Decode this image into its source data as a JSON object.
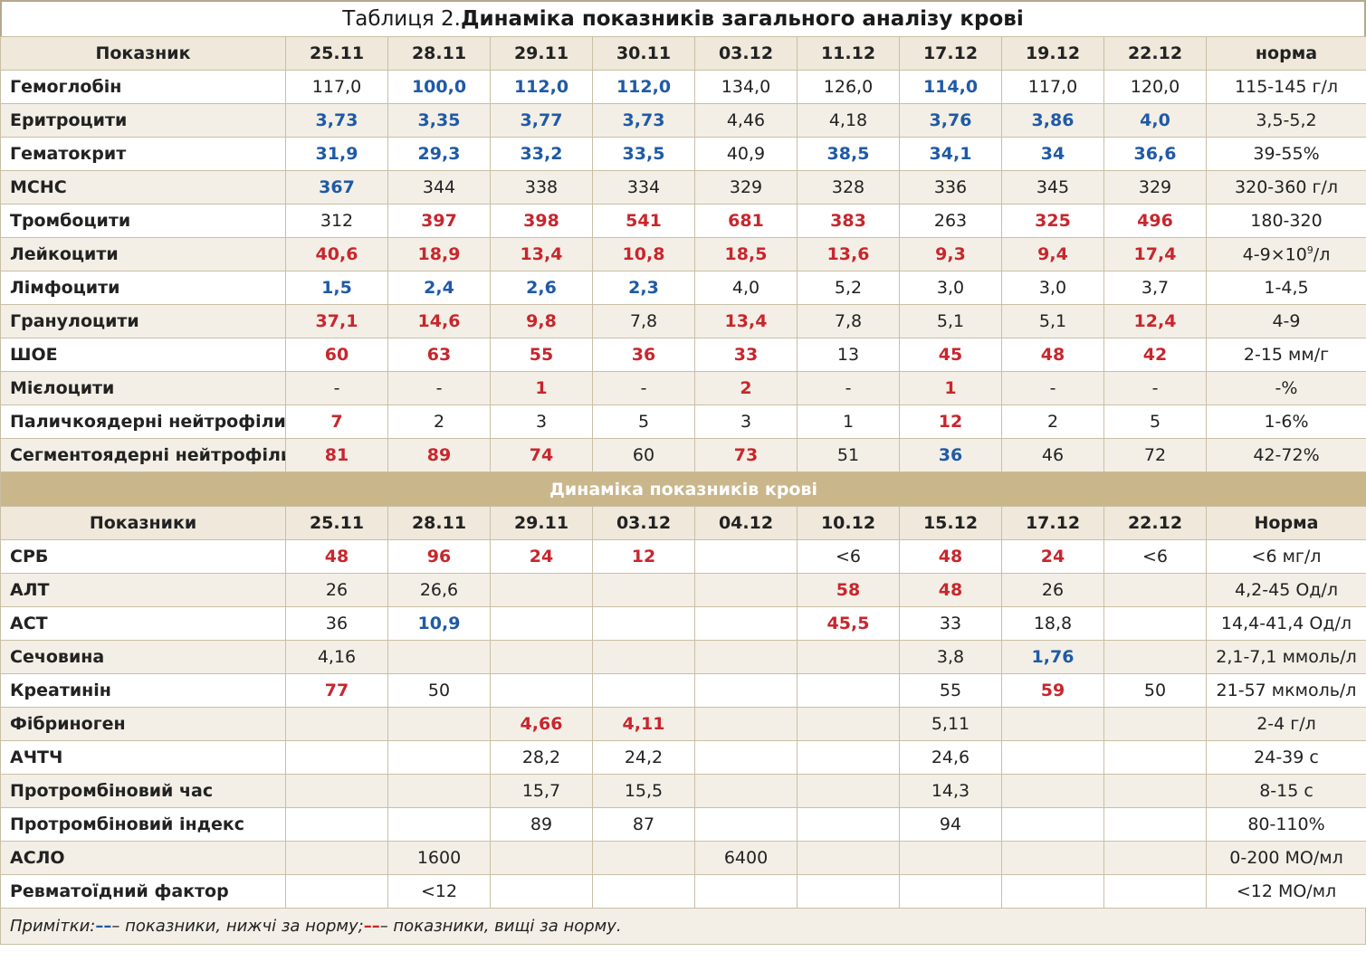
{
  "title": {
    "prefix": "Таблиця 2. ",
    "main": "Динаміка показників загального аналізу крові"
  },
  "colors": {
    "low": "#1f5aa6",
    "high": "#c8262d",
    "header_bg": "#efe8db",
    "section_bg": "#c9b68a"
  },
  "table1": {
    "headers": [
      "Показник",
      "25.11",
      "28.11",
      "29.11",
      "30.11",
      "03.12",
      "11.12",
      "17.12",
      "19.12",
      "22.12",
      "норма"
    ],
    "rows": [
      {
        "name": "Гемоглобін",
        "cells": [
          [
            "117,0",
            ""
          ],
          [
            "100,0",
            "low"
          ],
          [
            "112,0",
            "low"
          ],
          [
            "112,0",
            "low"
          ],
          [
            "134,0",
            ""
          ],
          [
            "126,0",
            ""
          ],
          [
            "114,0",
            "low"
          ],
          [
            "117,0",
            ""
          ],
          [
            "120,0",
            ""
          ]
        ],
        "norm": "115-145 г/л"
      },
      {
        "name": "Еритроцити",
        "cells": [
          [
            "3,73",
            "low"
          ],
          [
            "3,35",
            "low"
          ],
          [
            "3,77",
            "low"
          ],
          [
            "3,73",
            "low"
          ],
          [
            "4,46",
            ""
          ],
          [
            "4,18",
            ""
          ],
          [
            "3,76",
            "low"
          ],
          [
            "3,86",
            "low"
          ],
          [
            "4,0",
            "low"
          ]
        ],
        "norm": "3,5-5,2"
      },
      {
        "name": "Гематокрит",
        "cells": [
          [
            "31,9",
            "low"
          ],
          [
            "29,3",
            "low"
          ],
          [
            "33,2",
            "low"
          ],
          [
            "33,5",
            "low"
          ],
          [
            "40,9",
            ""
          ],
          [
            "38,5",
            "low"
          ],
          [
            "34,1",
            "low"
          ],
          [
            "34",
            "low"
          ],
          [
            "36,6",
            "low"
          ]
        ],
        "norm": "39-55%"
      },
      {
        "name": "MCHC",
        "cells": [
          [
            "367",
            "low"
          ],
          [
            "344",
            ""
          ],
          [
            "338",
            ""
          ],
          [
            "334",
            ""
          ],
          [
            "329",
            ""
          ],
          [
            "328",
            ""
          ],
          [
            "336",
            ""
          ],
          [
            "345",
            ""
          ],
          [
            "329",
            ""
          ]
        ],
        "norm": "320-360 г/л"
      },
      {
        "name": "Тромбоцити",
        "cells": [
          [
            "312",
            ""
          ],
          [
            "397",
            "high"
          ],
          [
            "398",
            "high"
          ],
          [
            "541",
            "high"
          ],
          [
            "681",
            "high"
          ],
          [
            "383",
            "high"
          ],
          [
            "263",
            ""
          ],
          [
            "325",
            "high"
          ],
          [
            "496",
            "high"
          ]
        ],
        "norm": "180-320"
      },
      {
        "name": "Лейкоцити",
        "cells": [
          [
            "40,6",
            "high"
          ],
          [
            "18,9",
            "high"
          ],
          [
            "13,4",
            "high"
          ],
          [
            "10,8",
            "high"
          ],
          [
            "18,5",
            "high"
          ],
          [
            "13,6",
            "high"
          ],
          [
            "9,3",
            "high"
          ],
          [
            "9,4",
            "high"
          ],
          [
            "17,4",
            "high"
          ]
        ],
        "norm": "4-9×10",
        "norm_sup": "9",
        "norm_suffix": "/л"
      },
      {
        "name": "Лімфоцити",
        "cells": [
          [
            "1,5",
            "low"
          ],
          [
            "2,4",
            "low"
          ],
          [
            "2,6",
            "low"
          ],
          [
            "2,3",
            "low"
          ],
          [
            "4,0",
            ""
          ],
          [
            "5,2",
            ""
          ],
          [
            "3,0",
            ""
          ],
          [
            "3,0",
            ""
          ],
          [
            "3,7",
            ""
          ]
        ],
        "norm": "1-4,5"
      },
      {
        "name": "Гранулоцити",
        "cells": [
          [
            "37,1",
            "high"
          ],
          [
            "14,6",
            "high"
          ],
          [
            "9,8",
            "high"
          ],
          [
            "7,8",
            ""
          ],
          [
            "13,4",
            "high"
          ],
          [
            "7,8",
            ""
          ],
          [
            "5,1",
            ""
          ],
          [
            "5,1",
            ""
          ],
          [
            "12,4",
            "high"
          ]
        ],
        "norm": "4-9"
      },
      {
        "name": "ШОЕ",
        "cells": [
          [
            "60",
            "high"
          ],
          [
            "63",
            "high"
          ],
          [
            "55",
            "high"
          ],
          [
            "36",
            "high"
          ],
          [
            "33",
            "high"
          ],
          [
            "13",
            ""
          ],
          [
            "45",
            "high"
          ],
          [
            "48",
            "high"
          ],
          [
            "42",
            "high"
          ]
        ],
        "norm": "2-15 мм/г"
      },
      {
        "name": "Мієлоцити",
        "cells": [
          [
            "-",
            ""
          ],
          [
            "-",
            ""
          ],
          [
            "1",
            "high"
          ],
          [
            "-",
            ""
          ],
          [
            "2",
            "high"
          ],
          [
            "-",
            ""
          ],
          [
            "1",
            "high"
          ],
          [
            "-",
            ""
          ],
          [
            "-",
            ""
          ]
        ],
        "norm": "-%"
      },
      {
        "name": "Паличкоядерні нейтрофіли",
        "cells": [
          [
            "7",
            "high"
          ],
          [
            "2",
            ""
          ],
          [
            "3",
            ""
          ],
          [
            "5",
            ""
          ],
          [
            "3",
            ""
          ],
          [
            "1",
            ""
          ],
          [
            "12",
            "high"
          ],
          [
            "2",
            ""
          ],
          [
            "5",
            ""
          ]
        ],
        "norm": "1-6%"
      },
      {
        "name": "Сегментоядерні нейтрофіли",
        "cells": [
          [
            "81",
            "high"
          ],
          [
            "89",
            "high"
          ],
          [
            "74",
            "high"
          ],
          [
            "60",
            ""
          ],
          [
            "73",
            "high"
          ],
          [
            "51",
            ""
          ],
          [
            "36",
            "low"
          ],
          [
            "46",
            ""
          ],
          [
            "72",
            ""
          ]
        ],
        "norm": "42-72%"
      }
    ]
  },
  "section_title": "Динаміка показників крові",
  "table2": {
    "headers": [
      "Показники",
      "25.11",
      "28.11",
      "29.11",
      "03.12",
      "04.12",
      "10.12",
      "15.12",
      "17.12",
      "22.12",
      "Норма"
    ],
    "rows": [
      {
        "name": "СРБ",
        "cells": [
          [
            "48",
            "high"
          ],
          [
            "96",
            "high"
          ],
          [
            "24",
            "high"
          ],
          [
            "12",
            "high"
          ],
          [
            "",
            ""
          ],
          [
            "<6",
            ""
          ],
          [
            "48",
            "high"
          ],
          [
            "24",
            "high"
          ],
          [
            "<6",
            ""
          ]
        ],
        "norm": "<6 мг/л"
      },
      {
        "name": "АЛТ",
        "cells": [
          [
            "26",
            ""
          ],
          [
            "26,6",
            ""
          ],
          [
            "",
            ""
          ],
          [
            "",
            ""
          ],
          [
            "",
            ""
          ],
          [
            "58",
            "high"
          ],
          [
            "48",
            "high"
          ],
          [
            "26",
            ""
          ],
          [
            "",
            ""
          ]
        ],
        "norm": "4,2-45 Од/л"
      },
      {
        "name": "АСТ",
        "cells": [
          [
            "36",
            ""
          ],
          [
            "10,9",
            "low"
          ],
          [
            "",
            ""
          ],
          [
            "",
            ""
          ],
          [
            "",
            ""
          ],
          [
            "45,5",
            "high"
          ],
          [
            "33",
            ""
          ],
          [
            "18,8",
            ""
          ],
          [
            "",
            ""
          ]
        ],
        "norm": "14,4-41,4 Од/л"
      },
      {
        "name": "Сечовина",
        "cells": [
          [
            "4,16",
            ""
          ],
          [
            "",
            ""
          ],
          [
            "",
            ""
          ],
          [
            "",
            ""
          ],
          [
            "",
            ""
          ],
          [
            "",
            ""
          ],
          [
            "3,8",
            ""
          ],
          [
            "1,76",
            "low"
          ],
          [
            "",
            ""
          ]
        ],
        "norm": "2,1-7,1 ммоль/л"
      },
      {
        "name": "Креатинін",
        "cells": [
          [
            "77",
            "high"
          ],
          [
            "50",
            ""
          ],
          [
            "",
            ""
          ],
          [
            "",
            ""
          ],
          [
            "",
            ""
          ],
          [
            "",
            ""
          ],
          [
            "55",
            ""
          ],
          [
            "59",
            "high"
          ],
          [
            "50",
            ""
          ]
        ],
        "norm": "21-57 мкмоль/л"
      },
      {
        "name": "Фібриноген",
        "cells": [
          [
            "",
            ""
          ],
          [
            "",
            ""
          ],
          [
            "4,66",
            "high"
          ],
          [
            "4,11",
            "high"
          ],
          [
            "",
            ""
          ],
          [
            "",
            ""
          ],
          [
            "5,11",
            ""
          ],
          [
            "",
            ""
          ],
          [
            "",
            ""
          ]
        ],
        "norm": "2-4 г/л"
      },
      {
        "name": "АЧТЧ",
        "cells": [
          [
            "",
            ""
          ],
          [
            "",
            ""
          ],
          [
            "28,2",
            ""
          ],
          [
            "24,2",
            ""
          ],
          [
            "",
            ""
          ],
          [
            "",
            ""
          ],
          [
            "24,6",
            ""
          ],
          [
            "",
            ""
          ],
          [
            "",
            ""
          ]
        ],
        "norm": "24-39 с"
      },
      {
        "name": "Протромбіновий час",
        "cells": [
          [
            "",
            ""
          ],
          [
            "",
            ""
          ],
          [
            "15,7",
            ""
          ],
          [
            "15,5",
            ""
          ],
          [
            "",
            ""
          ],
          [
            "",
            ""
          ],
          [
            "14,3",
            ""
          ],
          [
            "",
            ""
          ],
          [
            "",
            ""
          ]
        ],
        "norm": "8-15 с"
      },
      {
        "name": "Протромбіновий індекс",
        "cells": [
          [
            "",
            ""
          ],
          [
            "",
            ""
          ],
          [
            "89",
            ""
          ],
          [
            "87",
            ""
          ],
          [
            "",
            ""
          ],
          [
            "",
            ""
          ],
          [
            "94",
            ""
          ],
          [
            "",
            ""
          ],
          [
            "",
            ""
          ]
        ],
        "norm": "80-110%"
      },
      {
        "name": "АСЛО",
        "cells": [
          [
            "",
            ""
          ],
          [
            "1600",
            ""
          ],
          [
            "",
            ""
          ],
          [
            "",
            ""
          ],
          [
            "6400",
            ""
          ],
          [
            "",
            ""
          ],
          [
            "",
            ""
          ],
          [
            "",
            ""
          ],
          [
            "",
            ""
          ]
        ],
        "norm": "0-200 МО/мл"
      },
      {
        "name": "Ревматоїдний фактор",
        "cells": [
          [
            "",
            ""
          ],
          [
            "<12",
            ""
          ],
          [
            "",
            ""
          ],
          [
            "",
            ""
          ],
          [
            "",
            ""
          ],
          [
            "",
            ""
          ],
          [
            "",
            ""
          ],
          [
            "",
            ""
          ],
          [
            "",
            ""
          ]
        ],
        "norm": "<12 МО/мл"
      }
    ]
  },
  "notes": {
    "label": "Примітки: ",
    "dash": "––",
    "low_text": " – показники, нижчі за норму; ",
    "high_text": " – показники, вищі за норму."
  }
}
